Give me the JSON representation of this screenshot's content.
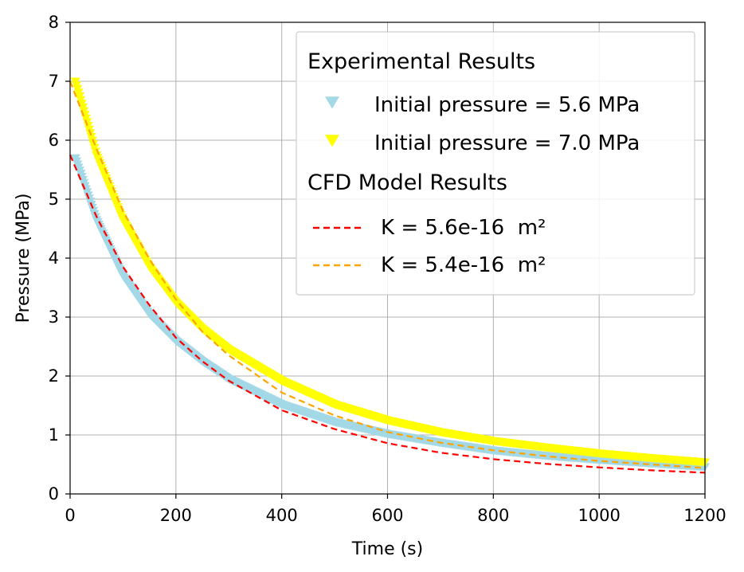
{
  "chart_data": {
    "type": "scatter",
    "xlabel": "Time (s)",
    "ylabel": "Pressure (MPa)",
    "xlim": [
      0,
      1200
    ],
    "ylim": [
      0,
      8
    ],
    "xticks": [
      "0",
      "200",
      "400",
      "600",
      "800",
      "1000",
      "1200"
    ],
    "yticks": [
      "0",
      "1",
      "2",
      "3",
      "4",
      "5",
      "6",
      "7",
      "8"
    ],
    "grid": true,
    "legend_placement": "top-right",
    "legend": {
      "group_experimental": "Experimental Results",
      "group_cfd": "CFD Model Results"
    },
    "series": [
      {
        "name": "Initial pressure = 5.6 MPa",
        "kind": "experimental",
        "color": "#a3d8e6",
        "marker": "triangle-down",
        "x": [
          10,
          50,
          100,
          150,
          200,
          250,
          300,
          400,
          500,
          600,
          700,
          800,
          900,
          1000,
          1100,
          1200
        ],
        "y": [
          5.7,
          4.65,
          3.7,
          3.05,
          2.6,
          2.25,
          1.95,
          1.52,
          1.22,
          1.02,
          0.87,
          0.74,
          0.65,
          0.58,
          0.52,
          0.46
        ]
      },
      {
        "name": "Initial pressure = 7.0 MPa",
        "kind": "experimental",
        "color": "#ffff00",
        "marker": "triangle-down",
        "x": [
          10,
          50,
          100,
          150,
          200,
          250,
          300,
          400,
          500,
          600,
          700,
          800,
          900,
          1000,
          1100,
          1200
        ],
        "y": [
          7.0,
          5.75,
          4.65,
          3.85,
          3.25,
          2.8,
          2.45,
          1.92,
          1.52,
          1.25,
          1.05,
          0.9,
          0.79,
          0.69,
          0.61,
          0.54
        ]
      },
      {
        "name": "K = 5.6e-16  m²",
        "kind": "cfd",
        "color": "#ff0000",
        "dash": true,
        "x": [
          0,
          50,
          100,
          150,
          200,
          250,
          300,
          400,
          500,
          600,
          700,
          800,
          900,
          1000,
          1100,
          1200
        ],
        "y": [
          5.75,
          4.7,
          3.85,
          3.2,
          2.65,
          2.25,
          1.92,
          1.42,
          1.1,
          0.86,
          0.7,
          0.59,
          0.51,
          0.45,
          0.4,
          0.36
        ]
      },
      {
        "name": "K = 5.4e-16  m²",
        "kind": "cfd",
        "color": "#ffa500",
        "dash": true,
        "x": [
          0,
          50,
          100,
          150,
          200,
          250,
          300,
          400,
          500,
          600,
          700,
          800,
          900,
          1000,
          1100,
          1200
        ],
        "y": [
          7.0,
          5.85,
          4.8,
          3.98,
          3.3,
          2.75,
          2.35,
          1.72,
          1.33,
          1.05,
          0.87,
          0.74,
          0.64,
          0.56,
          0.5,
          0.44
        ]
      }
    ]
  }
}
